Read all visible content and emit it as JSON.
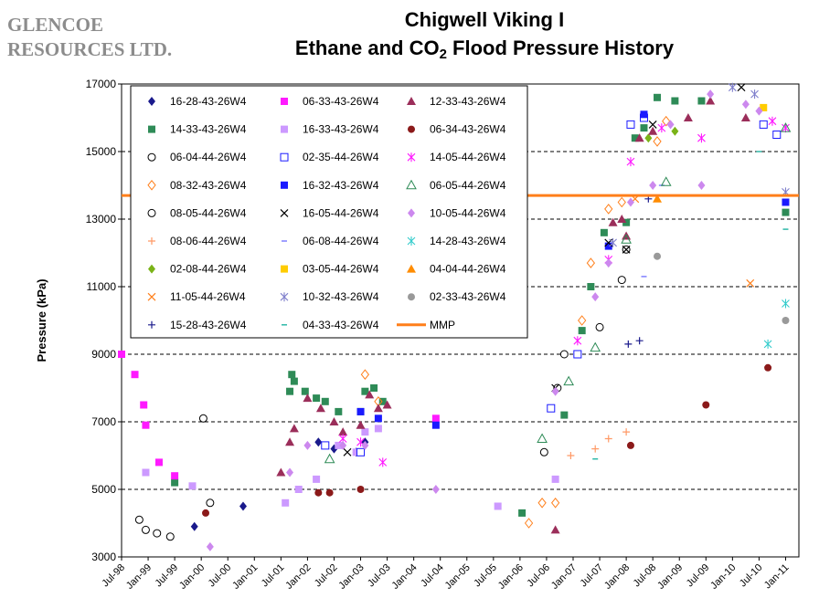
{
  "header": {
    "company_line1": "GLENCOE",
    "company_line2": "RESOURCES LTD.",
    "title_line1": "Chigwell Viking I",
    "title_line2_pre": "Ethane and CO",
    "title_line2_sub": "2",
    "title_line2_post": " Flood Pressure History"
  },
  "chart_data": {
    "type": "scatter",
    "ylabel": "Pressure (kPa)",
    "xlabel": "",
    "ylim": [
      3000,
      17000
    ],
    "yticks": [
      3000,
      5000,
      7000,
      9000,
      11000,
      13000,
      15000,
      17000
    ],
    "ytick_labels": [
      "3000",
      "5000",
      "7000",
      "9000",
      "11000",
      "13000",
      "15000",
      "17000"
    ],
    "xlim": [
      "1998-07",
      "2011-04"
    ],
    "xticks": [
      "1998-07",
      "1999-01",
      "1999-07",
      "2000-01",
      "2000-07",
      "2001-01",
      "2001-07",
      "2002-01",
      "2002-07",
      "2003-01",
      "2003-07",
      "2004-01",
      "2004-07",
      "2005-01",
      "2005-07",
      "2006-01",
      "2006-07",
      "2007-01",
      "2007-07",
      "2008-01",
      "2008-07",
      "2009-01",
      "2009-07",
      "2010-01",
      "2010-07",
      "2011-01"
    ],
    "xtick_labels": [
      "Jul-98",
      "Jan-99",
      "Jul-99",
      "Jan-00",
      "Jul-00",
      "Jan-01",
      "Jul-01",
      "Jan-02",
      "Jul-02",
      "Jan-03",
      "Jul-03",
      "Jan-04",
      "Jul-04",
      "Jan-05",
      "Jul-05",
      "Jan-06",
      "Jul-06",
      "Jan-07",
      "Jul-07",
      "Jan-08",
      "Jul-08",
      "Jan-09",
      "Jul-09",
      "Jan-10",
      "Jul-10",
      "Jan-11"
    ],
    "grid": "horizontal-dashed",
    "legend_position": "top-left",
    "mmp_line": {
      "name": "MMP",
      "y": 13700,
      "color": "#ff7f1a"
    },
    "series": [
      {
        "name": "16-28-43-26W4",
        "marker": "diamond",
        "color": "#1a1a8c",
        "points": [
          [
            "1999-11-15",
            3900
          ],
          [
            "2000-10-15",
            4500
          ],
          [
            "2002-03-15",
            6400
          ],
          [
            "2002-07-01",
            6200
          ],
          [
            "2002-12-01",
            6100
          ],
          [
            "2003-02-01",
            6400
          ]
        ]
      },
      {
        "name": "14-33-43-26W4",
        "marker": "square",
        "color": "#2e8b57",
        "points": [
          [
            "1999-07-01",
            5200
          ],
          [
            "2001-09-01",
            7900
          ],
          [
            "2001-10-01",
            8200
          ],
          [
            "2001-09-15",
            8400
          ],
          [
            "2001-12-15",
            7900
          ],
          [
            "2002-03-01",
            7700
          ],
          [
            "2002-05-01",
            7600
          ],
          [
            "2002-08-01",
            7300
          ],
          [
            "2003-01-01",
            7300
          ],
          [
            "2003-02-01",
            7900
          ],
          [
            "2003-04-01",
            8000
          ],
          [
            "2003-06-01",
            7600
          ],
          [
            "2006-01-15",
            4300
          ],
          [
            "2006-11-01",
            7200
          ],
          [
            "2007-03-01",
            9700
          ],
          [
            "2007-05-01",
            11000
          ],
          [
            "2007-08-01",
            12600
          ],
          [
            "2008-01-01",
            12900
          ],
          [
            "2008-03-01",
            15400
          ],
          [
            "2008-05-01",
            15700
          ],
          [
            "2008-08-01",
            16600
          ],
          [
            "2008-12-01",
            16500
          ],
          [
            "2009-06-01",
            16500
          ],
          [
            "2011-01-01",
            13200
          ]
        ]
      },
      {
        "name": "06-04-44-26W4",
        "marker": "circle-open",
        "color": "#000000",
        "points": [
          [
            "1998-11-01",
            4100
          ],
          [
            "1998-12-15",
            3800
          ],
          [
            "1999-03-01",
            3700
          ],
          [
            "1999-06-01",
            3600
          ],
          [
            "2000-01-15",
            7100
          ],
          [
            "2000-03-01",
            4600
          ],
          [
            "2006-06-15",
            6100
          ],
          [
            "2006-11-01",
            9000
          ]
        ]
      },
      {
        "name": "08-32-43-26W4",
        "marker": "diamond-open",
        "color": "#ff7f1a",
        "points": [
          [
            "2003-02-01",
            8400
          ],
          [
            "2003-05-01",
            7600
          ],
          [
            "2006-03-01",
            4000
          ],
          [
            "2006-06-01",
            4600
          ],
          [
            "2006-09-01",
            4600
          ],
          [
            "2007-03-01",
            10000
          ],
          [
            "2007-05-01",
            11700
          ],
          [
            "2007-09-01",
            13300
          ],
          [
            "2007-12-01",
            13500
          ],
          [
            "2008-08-01",
            15300
          ],
          [
            "2008-10-01",
            15900
          ]
        ]
      },
      {
        "name": "08-05-44-26W4",
        "marker": "circle-open",
        "color": "#000000",
        "points": [
          [
            "2006-09-15",
            8000
          ],
          [
            "2007-07-01",
            9800
          ],
          [
            "2007-12-01",
            11200
          ],
          [
            "2008-01-01",
            12100
          ]
        ]
      },
      {
        "name": "08-06-44-26W4",
        "marker": "plus",
        "color": "#ff9966",
        "points": [
          [
            "2006-12-15",
            6000
          ],
          [
            "2007-06-01",
            6200
          ],
          [
            "2007-09-01",
            6500
          ],
          [
            "2008-01-01",
            6700
          ]
        ]
      },
      {
        "name": "02-08-44-26W4",
        "marker": "diamond",
        "color": "#7ab317",
        "points": [
          [
            "2008-06-01",
            15400
          ],
          [
            "2008-12-01",
            15600
          ]
        ]
      },
      {
        "name": "11-05-44-26W4",
        "marker": "x",
        "color": "#ff7f1a",
        "points": [
          [
            "2008-03-01",
            13600
          ],
          [
            "2010-05-01",
            11100
          ]
        ]
      },
      {
        "name": "15-28-43-26W4",
        "marker": "plus",
        "color": "#1a1a8c",
        "points": [
          [
            "2008-01-15",
            9300
          ],
          [
            "2008-04-01",
            9400
          ],
          [
            "2008-06-01",
            13600
          ]
        ]
      },
      {
        "name": "06-33-43-26W4",
        "marker": "square",
        "color": "#ff1aff",
        "points": [
          [
            "1998-07-01",
            9000
          ],
          [
            "1998-10-01",
            8400
          ],
          [
            "1998-12-01",
            7500
          ],
          [
            "1998-12-15",
            6900
          ],
          [
            "1999-03-15",
            5800
          ],
          [
            "1999-07-01",
            5400
          ],
          [
            "2004-06-01",
            7100
          ]
        ]
      },
      {
        "name": "16-33-43-26W4",
        "marker": "square",
        "color": "#cc99ff",
        "points": [
          [
            "1998-12-15",
            5500
          ],
          [
            "1999-11-01",
            5100
          ],
          [
            "2001-08-01",
            4600
          ],
          [
            "2001-11-01",
            5000
          ],
          [
            "2002-03-01",
            5300
          ],
          [
            "2002-08-01",
            6300
          ],
          [
            "2002-12-01",
            6100
          ],
          [
            "2003-02-01",
            6700
          ],
          [
            "2003-05-01",
            6800
          ],
          [
            "2005-08-01",
            4500
          ],
          [
            "2006-09-01",
            5300
          ]
        ]
      },
      {
        "name": "02-35-44-26W4",
        "marker": "square-open",
        "color": "#1a1aff",
        "points": [
          [
            "2002-05-01",
            6300
          ],
          [
            "2003-01-01",
            6100
          ],
          [
            "2006-08-01",
            7400
          ],
          [
            "2007-02-01",
            9000
          ],
          [
            "2008-02-01",
            15800
          ],
          [
            "2008-05-01",
            16000
          ],
          [
            "2010-08-01",
            15800
          ],
          [
            "2010-11-01",
            15500
          ]
        ]
      },
      {
        "name": "16-32-43-26W4",
        "marker": "square",
        "color": "#1a1aff",
        "points": [
          [
            "2003-01-01",
            7300
          ],
          [
            "2003-05-01",
            7100
          ],
          [
            "2004-06-01",
            6900
          ],
          [
            "2007-09-01",
            12200
          ],
          [
            "2008-05-01",
            16100
          ],
          [
            "2011-01-01",
            13500
          ]
        ]
      },
      {
        "name": "16-05-44-26W4",
        "marker": "x",
        "color": "#000000",
        "points": [
          [
            "2002-10-01",
            6100
          ],
          [
            "2006-09-01",
            8000
          ],
          [
            "2007-09-01",
            12300
          ],
          [
            "2008-01-01",
            12100
          ],
          [
            "2008-07-01",
            15800
          ],
          [
            "2010-03-01",
            16900
          ]
        ]
      },
      {
        "name": "06-08-44-26W4",
        "marker": "dash",
        "color": "#8080ff",
        "points": [
          [
            "2008-05-01",
            11300
          ],
          [
            "2008-09-01",
            14000
          ]
        ]
      },
      {
        "name": "03-05-44-26W4",
        "marker": "square",
        "color": "#ffcc00",
        "points": [
          [
            "2010-08-01",
            16300
          ]
        ]
      },
      {
        "name": "10-32-43-26W4",
        "marker": "star",
        "color": "#8080cc",
        "points": [
          [
            "2007-10-01",
            12300
          ],
          [
            "2010-01-01",
            16900
          ],
          [
            "2010-06-01",
            16700
          ],
          [
            "2011-01-01",
            13800
          ]
        ]
      },
      {
        "name": "04-33-43-26W4",
        "marker": "dash",
        "color": "#2eb8a8",
        "points": [
          [
            "2007-06-01",
            5900
          ],
          [
            "2010-07-01",
            15000
          ],
          [
            "2011-01-01",
            12700
          ]
        ]
      },
      {
        "name": "12-33-43-26W4",
        "marker": "triangle",
        "color": "#9b2e5a",
        "points": [
          [
            "2001-07-01",
            5500
          ],
          [
            "2001-09-01",
            6400
          ],
          [
            "2001-10-01",
            6800
          ],
          [
            "2002-01-01",
            7700
          ],
          [
            "2002-04-01",
            7400
          ],
          [
            "2002-07-01",
            7000
          ],
          [
            "2002-09-01",
            6700
          ],
          [
            "2003-01-01",
            6900
          ],
          [
            "2003-03-01",
            7800
          ],
          [
            "2003-05-01",
            7400
          ],
          [
            "2003-07-01",
            7500
          ],
          [
            "2006-09-01",
            3800
          ],
          [
            "2007-10-01",
            12900
          ],
          [
            "2007-12-01",
            13000
          ],
          [
            "2008-01-01",
            12500
          ],
          [
            "2008-04-01",
            15400
          ],
          [
            "2008-07-01",
            15600
          ],
          [
            "2009-03-01",
            16000
          ],
          [
            "2009-08-01",
            16500
          ],
          [
            "2010-04-01",
            16000
          ]
        ]
      },
      {
        "name": "06-34-43-26W4",
        "marker": "circle",
        "color": "#8b1a1a",
        "points": [
          [
            "2000-02-01",
            4300
          ],
          [
            "2002-03-15",
            4900
          ],
          [
            "2002-06-01",
            4900
          ],
          [
            "2003-01-01",
            5000
          ],
          [
            "2008-02-01",
            6300
          ],
          [
            "2009-07-01",
            7500
          ],
          [
            "2010-09-01",
            8600
          ]
        ]
      },
      {
        "name": "14-05-44-26W4",
        "marker": "star",
        "color": "#ff1aff",
        "points": [
          [
            "2002-09-01",
            6500
          ],
          [
            "2003-01-01",
            6400
          ],
          [
            "2003-06-01",
            5800
          ],
          [
            "2007-02-01",
            9400
          ],
          [
            "2007-09-01",
            11800
          ],
          [
            "2008-02-01",
            14700
          ],
          [
            "2008-09-01",
            15700
          ],
          [
            "2009-06-01",
            15400
          ],
          [
            "2010-10-01",
            15900
          ],
          [
            "2011-01-01",
            15700
          ]
        ]
      },
      {
        "name": "06-05-44-26W4",
        "marker": "triangle-open",
        "color": "#2e8b57",
        "points": [
          [
            "2002-06-01",
            5900
          ],
          [
            "2006-06-01",
            6500
          ],
          [
            "2006-12-01",
            8200
          ],
          [
            "2007-06-01",
            9200
          ],
          [
            "2008-01-01",
            12400
          ],
          [
            "2008-10-01",
            14100
          ],
          [
            "2011-01-01",
            15700
          ]
        ]
      },
      {
        "name": "10-05-44-26W4",
        "marker": "diamond",
        "color": "#cc88ee",
        "points": [
          [
            "2000-03-01",
            3300
          ],
          [
            "2001-09-01",
            5500
          ],
          [
            "2002-01-01",
            6300
          ],
          [
            "2002-09-01",
            6300
          ],
          [
            "2003-02-01",
            6300
          ],
          [
            "2004-06-01",
            5000
          ],
          [
            "2006-09-01",
            7900
          ],
          [
            "2007-06-01",
            10700
          ],
          [
            "2007-09-01",
            11700
          ],
          [
            "2008-02-01",
            13500
          ],
          [
            "2008-07-01",
            14000
          ],
          [
            "2008-11-01",
            15800
          ],
          [
            "2009-06-01",
            14000
          ],
          [
            "2009-08-01",
            16700
          ],
          [
            "2010-04-01",
            16400
          ],
          [
            "2010-07-01",
            16200
          ]
        ]
      },
      {
        "name": "14-28-43-26W4",
        "marker": "star",
        "color": "#33cccc",
        "points": [
          [
            "2010-09-01",
            9300
          ],
          [
            "2011-01-01",
            10500
          ]
        ]
      },
      {
        "name": "04-04-44-26W4",
        "marker": "triangle",
        "color": "#ff8c00",
        "points": [
          [
            "2008-08-01",
            13600
          ]
        ]
      },
      {
        "name": "02-33-43-26W4",
        "marker": "circle",
        "color": "#999999",
        "points": [
          [
            "2008-08-01",
            11900
          ],
          [
            "2011-01-01",
            10000
          ]
        ]
      },
      {
        "name": "MMP",
        "marker": "line",
        "color": "#ff7f1a",
        "points": []
      }
    ]
  }
}
